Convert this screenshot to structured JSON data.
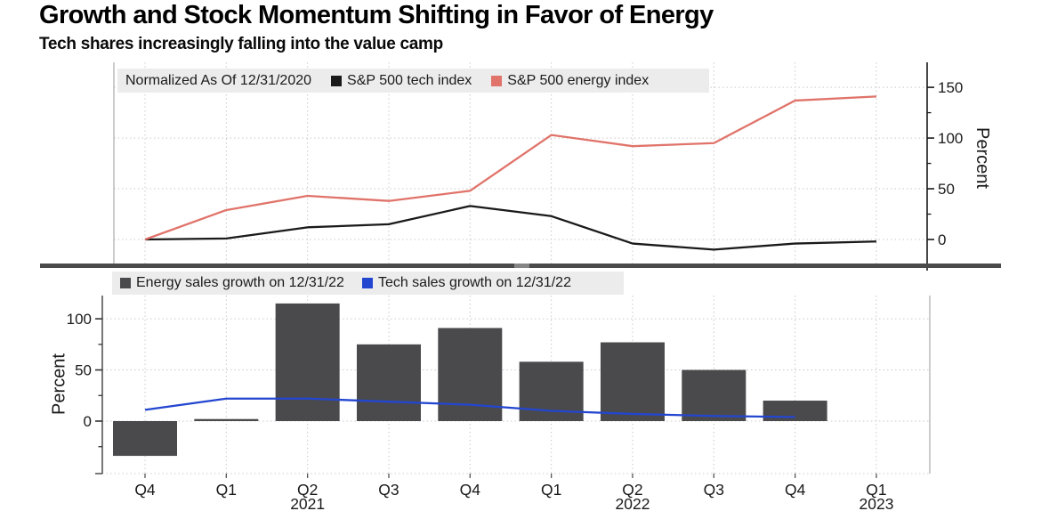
{
  "header": {
    "title": "Growth and Stock Momentum Shifting in Favor of Energy",
    "subtitle": "Tech shares increasingly falling into the value camp"
  },
  "colors": {
    "tech_line": "#1a1a1a",
    "energy_line": "#e0736a",
    "energy_bars": "#4a4a4d",
    "tech_sales_line": "#2346d0",
    "legend_bg": "#ececec",
    "grid": "#c9c9c9",
    "axis": "#1a1a1a",
    "separator": "#4a4a4a"
  },
  "chart_data": [
    {
      "id": "index-chart",
      "type": "line",
      "legend": {
        "note": "Normalized As Of 12/31/2020",
        "entries": [
          {
            "label": "S&P 500 tech index",
            "color": "#1a1a1a"
          },
          {
            "label": "S&P 500 energy index",
            "color": "#e0736a"
          }
        ]
      },
      "x_categories": [
        "Q4",
        "Q1",
        "Q2",
        "Q3",
        "Q4",
        "Q1",
        "Q2",
        "Q3",
        "Q4",
        "Q1"
      ],
      "series": [
        {
          "name": "S&P 500 tech index",
          "color": "#1a1a1a",
          "values": [
            0,
            1,
            12,
            15,
            33,
            23,
            -4,
            -10,
            -4,
            -2
          ]
        },
        {
          "name": "S&P 500 energy index",
          "color": "#e0736a",
          "values": [
            0,
            29,
            43,
            38,
            48,
            103,
            92,
            95,
            137,
            141
          ]
        }
      ],
      "ylabel": "Percent",
      "yticks": [
        0,
        50,
        100,
        150
      ],
      "yticks_minor": [
        25,
        75,
        125
      ],
      "ylim": [
        -25,
        175
      ],
      "axis_side": "right",
      "grid": true,
      "legend_position": "top-left-inside"
    },
    {
      "id": "sales-chart",
      "type": "bar+line",
      "legend": {
        "entries": [
          {
            "label": "Energy sales growth on 12/31/22",
            "color": "#4a4a4d"
          },
          {
            "label": "Tech sales growth on 12/31/22",
            "color": "#2346d0"
          }
        ]
      },
      "x_categories": [
        "Q4",
        "Q1",
        "Q2",
        "Q3",
        "Q4",
        "Q1",
        "Q2",
        "Q3",
        "Q4",
        "Q1"
      ],
      "year_labels": [
        {
          "index": 2,
          "label": "2021"
        },
        {
          "index": 6,
          "label": "2022"
        },
        {
          "index": 9,
          "label": "2023"
        }
      ],
      "bars": {
        "name": "Energy sales growth on 12/31/22",
        "color": "#4a4a4d",
        "values": [
          -34,
          2,
          115,
          75,
          91,
          58,
          77,
          50,
          20,
          null
        ]
      },
      "line": {
        "name": "Tech sales growth on 12/31/22",
        "color": "#2346d0",
        "values": [
          11,
          22,
          22,
          19,
          16,
          10,
          7,
          5,
          4,
          null
        ]
      },
      "ylabel": "Percent",
      "yticks": [
        0,
        50,
        100
      ],
      "yticks_minor": [
        -25,
        25,
        75
      ],
      "ylim": [
        -51,
        123
      ],
      "axis_side": "left",
      "grid": true,
      "legend_position": "top-left-inside"
    }
  ]
}
